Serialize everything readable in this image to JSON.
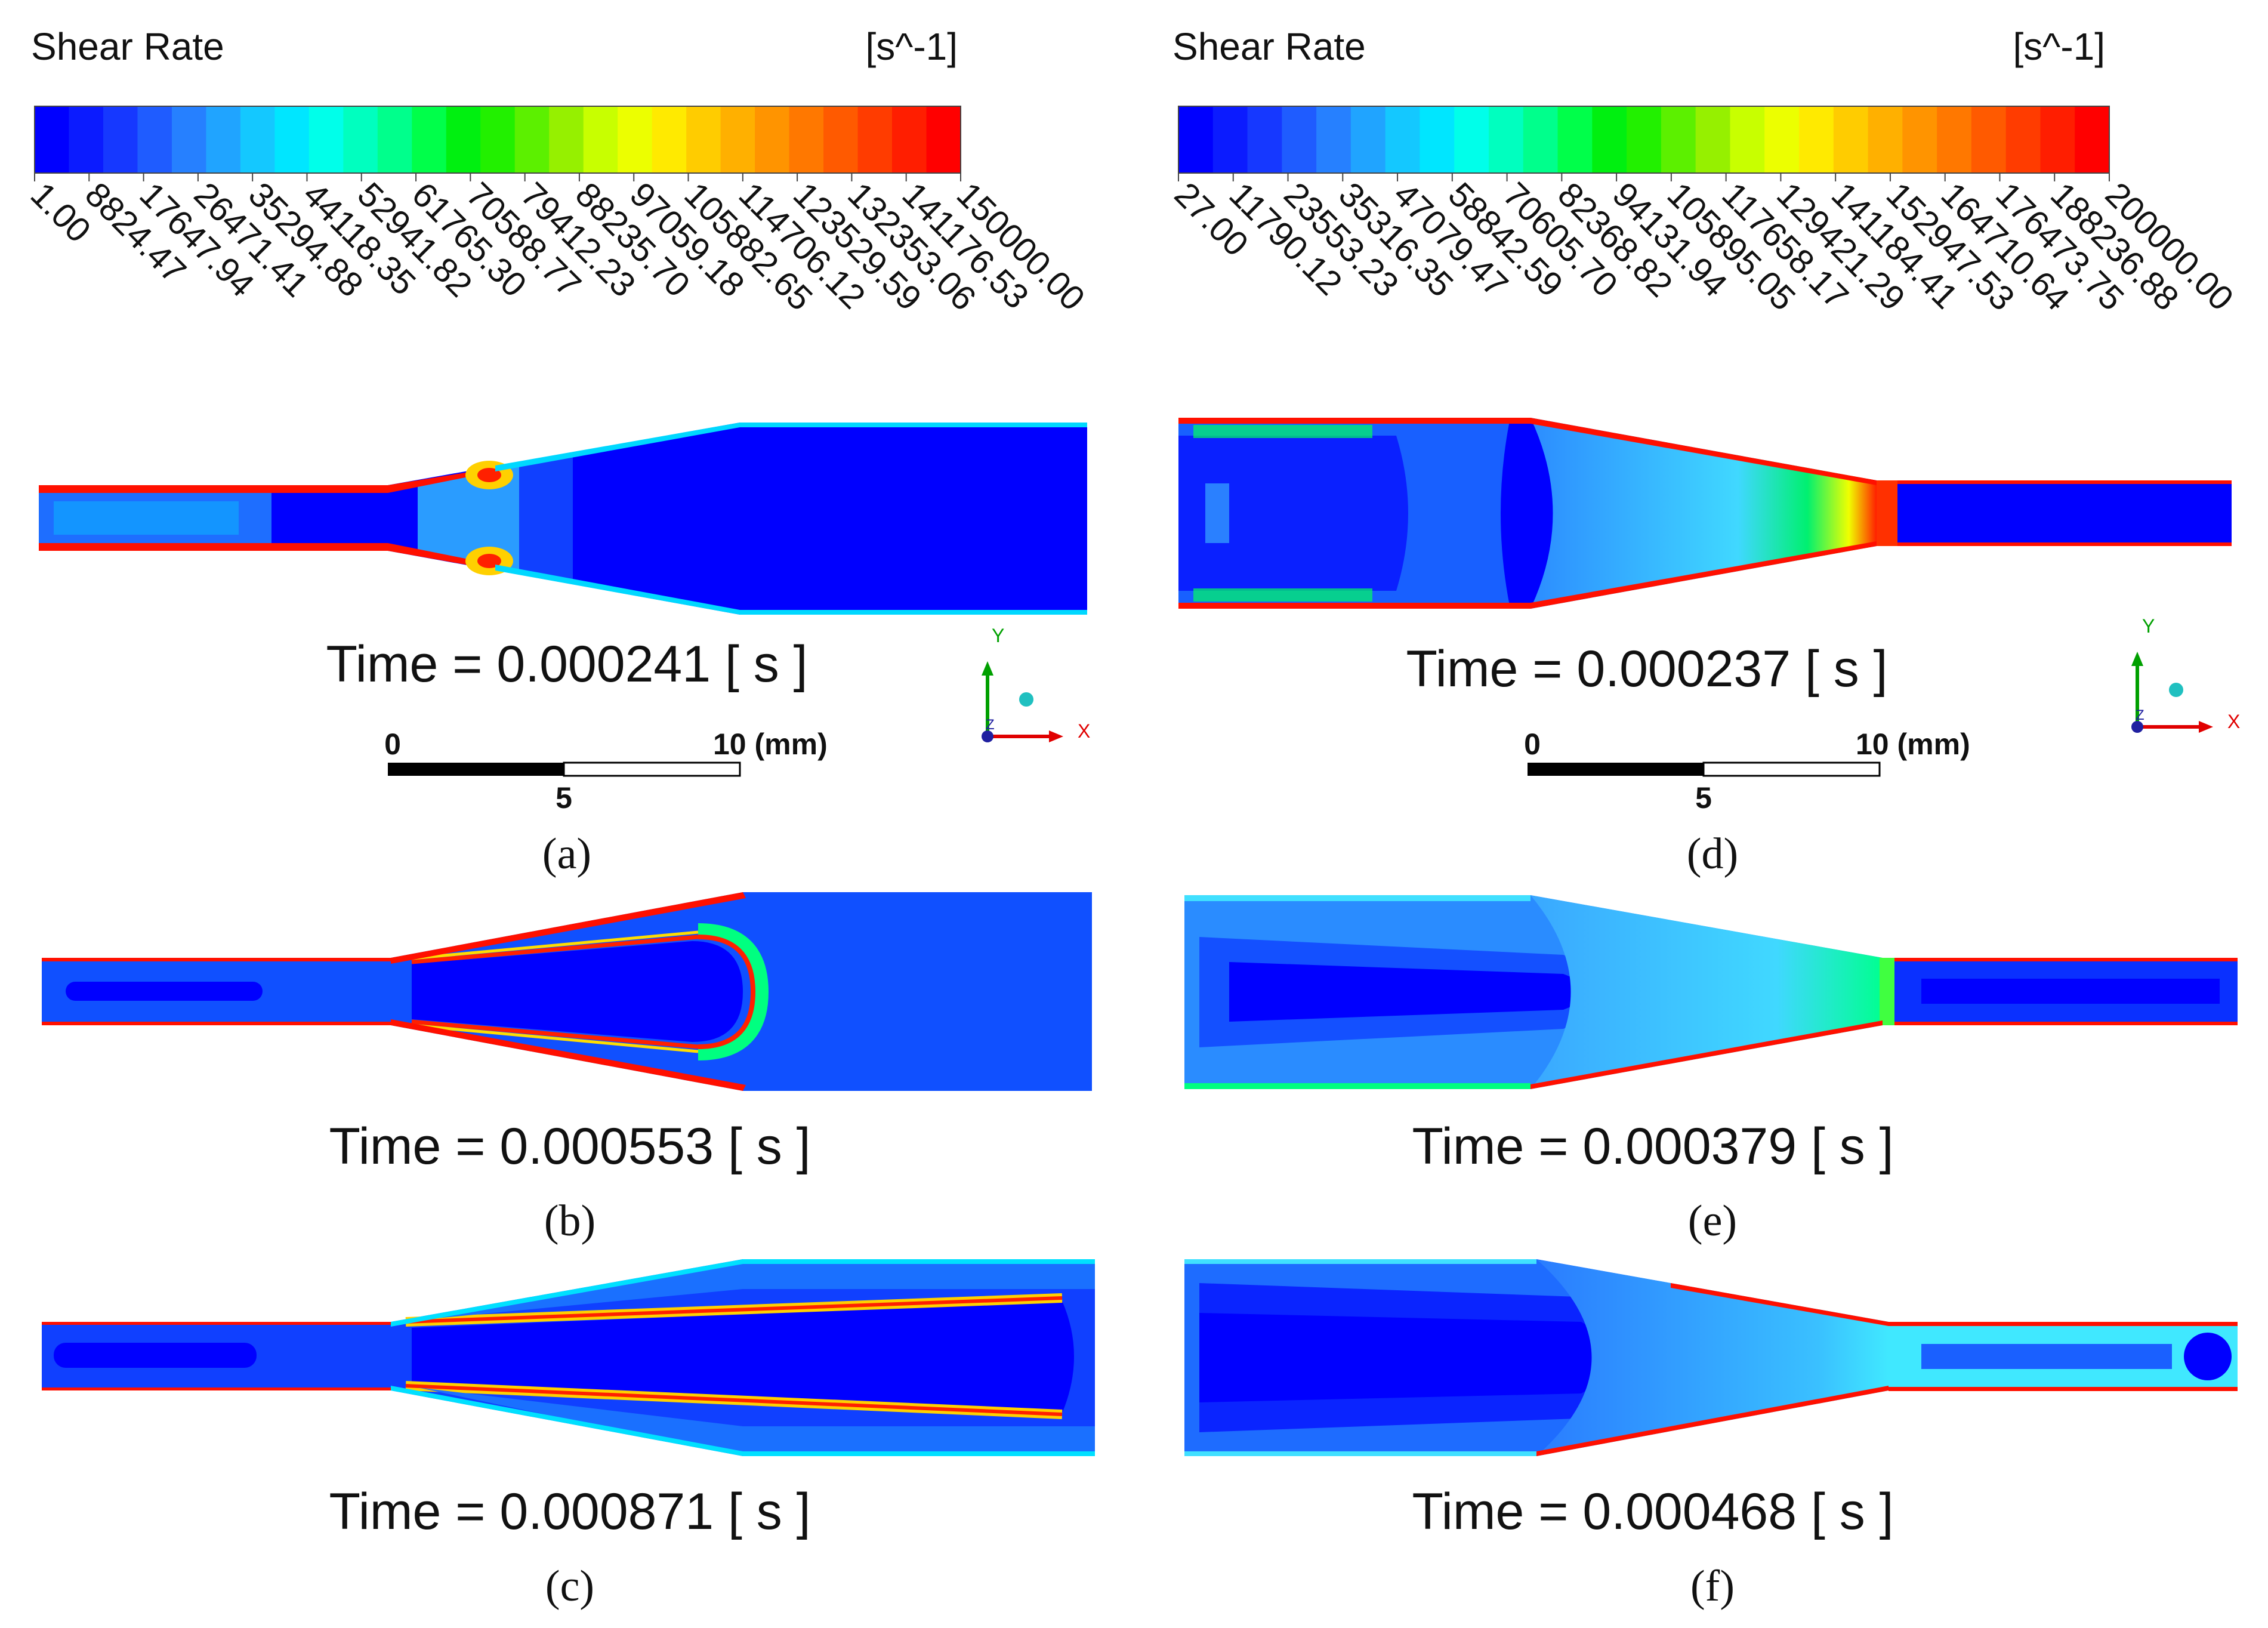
{
  "left_legend": {
    "title": "Shear Rate",
    "unit": "[s^-1]",
    "ticks": [
      "1.00",
      "8824.47",
      "17647.94",
      "26471.41",
      "35294.88",
      "44118.35",
      "52941.82",
      "61765.30",
      "70588.77",
      "79412.23",
      "88235.70",
      "97059.18",
      "105882.65",
      "114706.12",
      "123529.59",
      "132353.06",
      "141176.53",
      "150000.00"
    ],
    "range": [
      1,
      150000
    ]
  },
  "right_legend": {
    "title": "Shear Rate",
    "unit": "[s^-1]",
    "ticks": [
      "27.00",
      "11790.12",
      "23553.23",
      "35316.35",
      "47079.47",
      "58842.59",
      "70605.70",
      "82368.82",
      "94131.94",
      "105895.05",
      "117658.17",
      "129421.29",
      "141184.41",
      "152947.53",
      "164710.64",
      "176473.75",
      "188236.88",
      "200000.00"
    ],
    "range": [
      27,
      200000
    ]
  },
  "colormap": [
    "#0000ff",
    "#0b1bff",
    "#1638ff",
    "#1f5cff",
    "#2680ff",
    "#20a4ff",
    "#14c8ff",
    "#00e6ff",
    "#00ffea",
    "#00ffbf",
    "#00ff8c",
    "#00ff4a",
    "#00f010",
    "#22f000",
    "#5cf000",
    "#96f000",
    "#c8ff00",
    "#ecff00",
    "#ffea00",
    "#ffcc00",
    "#ffb000",
    "#ff9400",
    "#ff7800",
    "#ff5a00",
    "#ff3c00",
    "#ff1e00",
    "#ff0000"
  ],
  "panels": [
    {
      "id": "a",
      "label": "(a)",
      "time": "Time = 0.000241 [ s ]"
    },
    {
      "id": "b",
      "label": "(b)",
      "time": "Time = 0.000553 [ s ]"
    },
    {
      "id": "c",
      "label": "(c)",
      "time": "Time = 0.000871 [ s ]"
    },
    {
      "id": "d",
      "label": "(d)",
      "time": "Time = 0.000237 [ s ]"
    },
    {
      "id": "e",
      "label": "(e)",
      "time": "Time = 0.000379 [ s ]"
    },
    {
      "id": "f",
      "label": "(f)",
      "time": "Time = 0.000468 [ s ]"
    }
  ],
  "scale_bar": {
    "zero": "0",
    "mid": "5",
    "end": "10 (mm)"
  },
  "axes": {
    "y": "Y",
    "x": "X",
    "z": "Z"
  },
  "colors": {
    "deep_blue": "#0000ff",
    "blue": "#1060ff",
    "light_blue": "#2aa0ff",
    "cyan": "#00e8ff",
    "green": "#00e040",
    "yellow": "#ffee00",
    "red": "#ff0000",
    "axis_red": "#e00000",
    "axis_green": "#00a000",
    "axis_blue": "#2020a0",
    "sphere": "#20c0c0"
  }
}
